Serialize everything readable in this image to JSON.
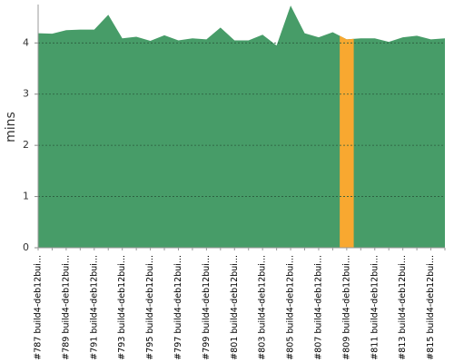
{
  "chart_data": {
    "type": "area",
    "y_label": "mins",
    "categories": [
      "#787 build4-deb12bui...",
      null,
      "#789 build4-deb12bui...",
      null,
      "#791 build4-deb12bui...",
      null,
      "#793 build4-deb12bui...",
      null,
      "#795 build4-deb12bui...",
      null,
      "#797 build4-deb12bui...",
      null,
      "#799 build4-deb12bui...",
      null,
      "#801 build4-deb12bui...",
      null,
      "#803 build4-deb12bui...",
      null,
      "#805 build4-deb12bui...",
      null,
      "#807 build4-deb12bui...",
      null,
      "#809 build4-deb12bui...",
      null,
      "#811 build4-deb12bui...",
      null,
      "#813 build4-deb12bui...",
      null,
      "#815 build4-deb12bui...",
      null
    ],
    "values": [
      4.19,
      4.18,
      4.25,
      4.26,
      4.26,
      4.55,
      4.09,
      4.12,
      4.04,
      4.15,
      4.05,
      4.09,
      4.07,
      4.3,
      4.05,
      4.05,
      4.16,
      3.95,
      4.73,
      4.19,
      4.11,
      4.21,
      4.07,
      4.09,
      4.09,
      4.02,
      4.11,
      4.14,
      4.07,
      4.09
    ],
    "color": "#479c68",
    "highlight": {
      "category": "#809 build4-deb12bui...",
      "color": "#f8a830"
    },
    "ylim": [
      0,
      4.75
    ],
    "yticks": [
      0,
      1,
      2,
      3,
      4
    ],
    "grid": true
  }
}
